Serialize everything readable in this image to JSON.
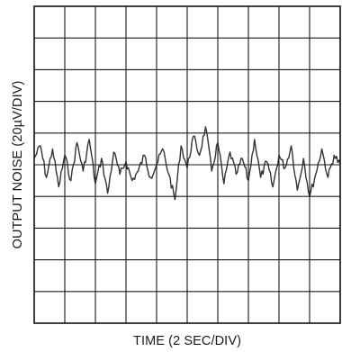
{
  "chart_data": {
    "type": "line",
    "xlabel": "TIME (2 SEC/DIV)",
    "ylabel": "OUTPUT NOISE (20µV/DIV)",
    "x_divisions": 10,
    "y_divisions": 10,
    "xlim": [
      0,
      20
    ],
    "ylim": [
      -100,
      100
    ],
    "grid": true,
    "series": [
      {
        "x": [
          0,
          0.4,
          0.8,
          1.2,
          1.6,
          2,
          2.4,
          2.8,
          3.2,
          3.6,
          4,
          4.4,
          4.8,
          5.2,
          5.6,
          6,
          6.4,
          6.8,
          7.2,
          7.6,
          8,
          8.4,
          8.8,
          9.2,
          9.6,
          10,
          10.4,
          10.8,
          11.2,
          11.6,
          12,
          12.4,
          12.8,
          13.2,
          13.6,
          14,
          14.4,
          14.8,
          15.2,
          15.6,
          16,
          16.4,
          16.8,
          17.2,
          17.6,
          18,
          18.4,
          18.8,
          19.2,
          19.6,
          20
        ],
        "values": [
          4,
          12,
          -8,
          10,
          -14,
          6,
          -10,
          14,
          -4,
          16,
          -12,
          4,
          -18,
          8,
          -6,
          2,
          -10,
          -4,
          6,
          -8,
          0,
          10,
          -6,
          -22,
          12,
          -2,
          18,
          6,
          24,
          -4,
          14,
          -12,
          8,
          -6,
          4,
          -10,
          16,
          -8,
          2,
          -14,
          6,
          -2,
          12,
          -16,
          4,
          -20,
          -6,
          10,
          -8,
          6,
          0
        ]
      }
    ]
  }
}
